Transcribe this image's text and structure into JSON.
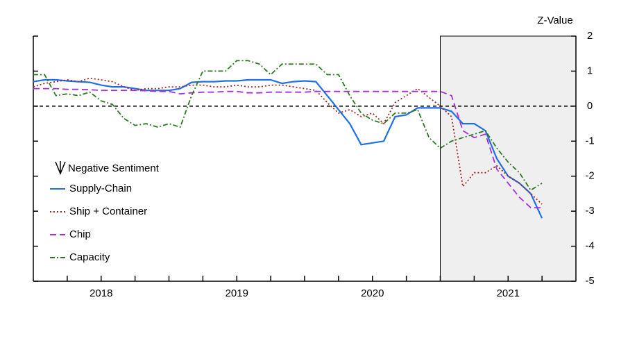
{
  "chart_data": {
    "type": "line",
    "y_label": "Z-Value",
    "legend_title": "Negative Sentiment",
    "xlim": [
      2018,
      2022
    ],
    "ylim": [
      -5,
      2
    ],
    "yticks": [
      -5,
      -4,
      -3,
      -2,
      -1,
      0,
      1,
      2
    ],
    "xticks": [
      {
        "value": 2018.5,
        "label": "2018"
      },
      {
        "value": 2019.5,
        "label": "2019"
      },
      {
        "value": 2020.5,
        "label": "2020"
      },
      {
        "value": 2021.5,
        "label": "2021"
      }
    ],
    "x_tick_marks": [
      2018.25,
      2018.5,
      2018.75,
      2019,
      2019.25,
      2019.5,
      2019.75,
      2020,
      2020.25,
      2020.5,
      2020.75,
      2021,
      2021.25,
      2021.5,
      2021.75
    ],
    "reference_line": 0,
    "shaded_span": [
      2021,
      2022
    ],
    "x": [
      2018.0,
      2018.083,
      2018.167,
      2018.25,
      2018.333,
      2018.417,
      2018.5,
      2018.583,
      2018.667,
      2018.75,
      2018.833,
      2018.917,
      2019.0,
      2019.083,
      2019.167,
      2019.25,
      2019.333,
      2019.417,
      2019.5,
      2019.583,
      2019.667,
      2019.75,
      2019.833,
      2019.917,
      2020.0,
      2020.083,
      2020.167,
      2020.25,
      2020.333,
      2020.417,
      2020.5,
      2020.583,
      2020.667,
      2020.75,
      2020.833,
      2020.917,
      2021.0,
      2021.083,
      2021.167,
      2021.25,
      2021.333,
      2021.417,
      2021.5,
      2021.583,
      2021.667,
      2021.75
    ],
    "series": [
      {
        "name": "Supply-Chain",
        "color": "#1f6fe8",
        "style": "solid",
        "values": [
          0.7,
          0.75,
          0.75,
          0.72,
          0.7,
          0.68,
          0.6,
          0.55,
          0.55,
          0.5,
          0.45,
          0.45,
          0.45,
          0.5,
          0.68,
          0.7,
          0.7,
          0.72,
          0.72,
          0.75,
          0.75,
          0.75,
          0.65,
          0.7,
          0.72,
          0.7,
          0.3,
          -0.1,
          -0.5,
          -1.1,
          -1.05,
          -1.0,
          -0.3,
          -0.25,
          -0.05,
          -0.05,
          -0.05,
          -0.15,
          -0.5,
          -0.5,
          -0.7,
          -1.5,
          -2.0,
          -2.2,
          -2.5,
          -3.2
        ]
      },
      {
        "name": "Ship + Container",
        "color": "#a0221c",
        "style": "dotted",
        "values": [
          0.55,
          0.65,
          0.7,
          0.75,
          0.7,
          0.8,
          0.75,
          0.7,
          0.55,
          0.45,
          0.5,
          0.5,
          0.55,
          0.55,
          0.6,
          0.6,
          0.55,
          0.55,
          0.6,
          0.55,
          0.55,
          0.6,
          0.6,
          0.55,
          0.5,
          0.45,
          0.1,
          -0.2,
          -0.1,
          -0.3,
          -0.2,
          -0.5,
          0.1,
          0.3,
          0.5,
          0.25,
          0.0,
          -0.3,
          -2.3,
          -1.9,
          -1.9,
          -1.7,
          -2.0,
          -2.2,
          -2.5,
          -2.8
        ]
      },
      {
        "name": "Chip",
        "color": "#a52ee0",
        "style": "dashed",
        "values": [
          0.5,
          0.5,
          0.5,
          0.48,
          0.48,
          0.47,
          0.45,
          0.45,
          0.45,
          0.45,
          0.44,
          0.42,
          0.42,
          0.35,
          0.38,
          0.4,
          0.4,
          0.42,
          0.42,
          0.38,
          0.38,
          0.4,
          0.4,
          0.4,
          0.4,
          0.42,
          0.42,
          0.42,
          0.42,
          0.42,
          0.42,
          0.42,
          0.42,
          0.42,
          0.42,
          0.42,
          0.42,
          0.3,
          -0.7,
          -0.9,
          -0.8,
          -1.8,
          -2.2,
          -2.6,
          -2.9,
          -2.9
        ]
      },
      {
        "name": "Capacity",
        "color": "#2a7a1f",
        "style": "dashdot",
        "values": [
          0.9,
          0.9,
          0.3,
          0.35,
          0.3,
          0.4,
          0.15,
          0.05,
          -0.35,
          -0.55,
          -0.5,
          -0.6,
          -0.5,
          -0.6,
          0.3,
          1.0,
          1.0,
          1.0,
          1.3,
          1.3,
          1.2,
          0.9,
          1.2,
          1.2,
          1.2,
          1.2,
          0.9,
          0.9,
          0.3,
          -0.2,
          -0.4,
          -0.5,
          -0.2,
          -0.2,
          -0.1,
          -0.9,
          -1.2,
          -1.0,
          -0.9,
          -0.8,
          -0.7,
          -1.2,
          -1.6,
          -1.9,
          -2.4,
          -2.2
        ]
      }
    ]
  }
}
